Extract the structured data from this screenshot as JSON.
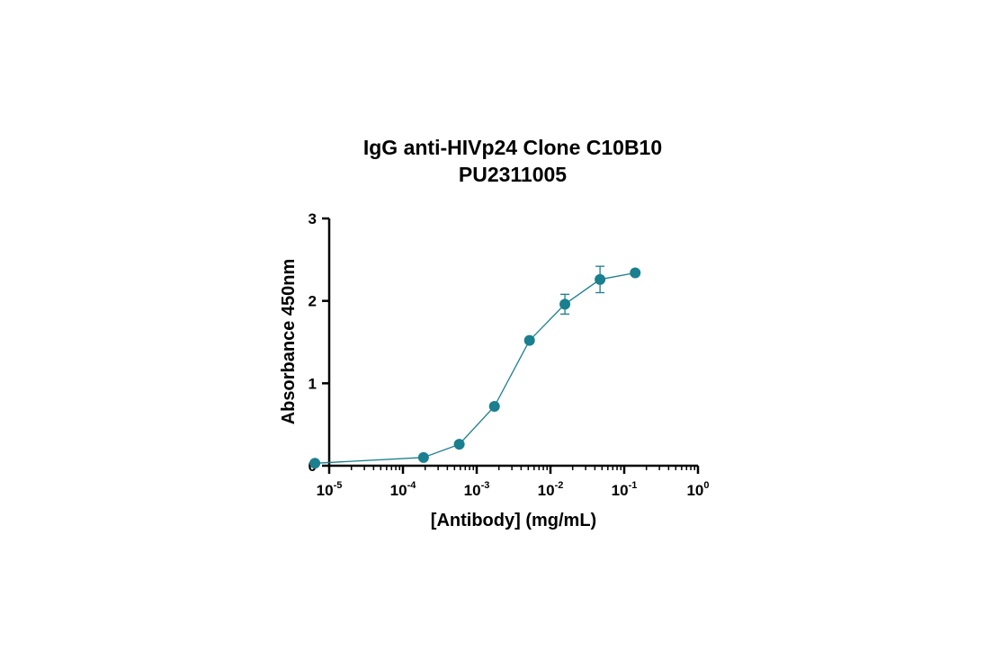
{
  "chart_data": {
    "type": "scatter",
    "title": "IgG anti-HIVp24 Clone C10B10",
    "subtitle": "PU2311005",
    "xlabel": "[Antibody] (mg/mL)",
    "ylabel": "Absorbance 450nm",
    "x_scale": "log",
    "xlim": [
      1e-05,
      1
    ],
    "ylim": [
      0,
      3
    ],
    "x_ticks": [
      {
        "base": "10",
        "exp": "-5",
        "value": 1e-05
      },
      {
        "base": "10",
        "exp": "-4",
        "value": 0.0001
      },
      {
        "base": "10",
        "exp": "-3",
        "value": 0.001
      },
      {
        "base": "10",
        "exp": "-2",
        "value": 0.01
      },
      {
        "base": "10",
        "exp": "-1",
        "value": 0.1
      },
      {
        "base": "10",
        "exp": "0",
        "value": 1
      }
    ],
    "y_ticks": [
      "0",
      "1",
      "2",
      "3"
    ],
    "grid": false,
    "series": [
      {
        "color": "#1a7f8e",
        "connected": true,
        "points": [
          {
            "x": 6.4e-06,
            "y": 0.03,
            "err": 0
          },
          {
            "x": 0.00019,
            "y": 0.1,
            "err": 0
          },
          {
            "x": 0.00058,
            "y": 0.26,
            "err": 0
          },
          {
            "x": 0.00174,
            "y": 0.72,
            "err": 0
          },
          {
            "x": 0.0052,
            "y": 1.52,
            "err": 0
          },
          {
            "x": 0.0157,
            "y": 1.96,
            "err": 0.12
          },
          {
            "x": 0.047,
            "y": 2.26,
            "err": 0.16
          },
          {
            "x": 0.141,
            "y": 2.34,
            "err": 0
          }
        ]
      }
    ]
  }
}
